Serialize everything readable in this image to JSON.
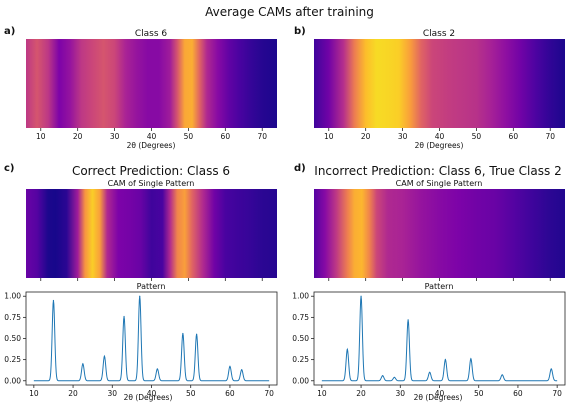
{
  "figure": {
    "title": "Average CAMs after training"
  },
  "chart_data": [
    {
      "type": "heatmap",
      "panel_label": "a)",
      "title": "Class 6",
      "xlabel": "2θ (Degrees)",
      "xlim": [
        6,
        74
      ],
      "xticks": [
        10,
        20,
        30,
        40,
        50,
        60,
        70
      ],
      "colormap": "plasma",
      "x": [
        6,
        9,
        12,
        15,
        18,
        21,
        24,
        27,
        30,
        33,
        36,
        39,
        42,
        45,
        47,
        49,
        51,
        53,
        55,
        58,
        61,
        64,
        67,
        70,
        74
      ],
      "values": [
        0.45,
        0.55,
        0.45,
        0.25,
        0.32,
        0.45,
        0.5,
        0.55,
        0.5,
        0.38,
        0.32,
        0.28,
        0.28,
        0.35,
        0.55,
        0.8,
        0.82,
        0.6,
        0.4,
        0.28,
        0.18,
        0.12,
        0.08,
        0.05,
        0.03
      ]
    },
    {
      "type": "heatmap",
      "panel_label": "b)",
      "title": "Class 2",
      "xlabel": "2θ (Degrees)",
      "xlim": [
        6,
        74
      ],
      "xticks": [
        10,
        20,
        30,
        40,
        50,
        60,
        70
      ],
      "colormap": "plasma",
      "x": [
        6,
        10,
        14,
        17,
        20,
        23,
        26,
        29,
        32,
        35,
        38,
        42,
        46,
        50,
        54,
        58,
        62,
        66,
        70,
        74
      ],
      "values": [
        0.1,
        0.22,
        0.42,
        0.68,
        0.86,
        0.93,
        0.92,
        0.9,
        0.78,
        0.6,
        0.5,
        0.47,
        0.45,
        0.43,
        0.37,
        0.3,
        0.22,
        0.13,
        0.07,
        0.03
      ]
    },
    {
      "type": "heatmap",
      "panel_label": "c)",
      "suptitle": "Correct Prediction: Class 6",
      "title": "CAM of Single Pattern",
      "colormap": "plasma",
      "xlim": [
        6,
        74
      ],
      "xticks": [
        10,
        20,
        30,
        40,
        50,
        60,
        70
      ],
      "x": [
        6,
        9,
        12,
        14,
        17,
        20,
        22,
        24,
        26,
        28,
        31,
        34,
        37,
        40,
        43,
        45,
        47,
        49,
        51,
        54,
        57,
        60,
        63,
        67,
        70,
        74
      ],
      "values": [
        0.2,
        0.15,
        0.03,
        0.02,
        0.06,
        0.35,
        0.75,
        0.9,
        0.78,
        0.4,
        0.25,
        0.23,
        0.2,
        0.1,
        0.12,
        0.4,
        0.7,
        0.78,
        0.6,
        0.4,
        0.22,
        0.12,
        0.1,
        0.08,
        0.06,
        0.05
      ]
    },
    {
      "type": "line",
      "title": "Pattern",
      "xlabel": "2θ (Degrees)",
      "xlim": [
        8,
        72
      ],
      "ylim": [
        -0.05,
        1.05
      ],
      "xticks": [
        10,
        20,
        30,
        40,
        50,
        60,
        70
      ],
      "yticks": [
        "0.00",
        "0.25",
        "0.50",
        "0.75",
        "1.00"
      ],
      "peaks": [
        {
          "x": 15,
          "y": 0.95
        },
        {
          "x": 22.5,
          "y": 0.2
        },
        {
          "x": 28,
          "y": 0.29
        },
        {
          "x": 33,
          "y": 0.76
        },
        {
          "x": 37,
          "y": 1.0
        },
        {
          "x": 41.5,
          "y": 0.14
        },
        {
          "x": 48,
          "y": 0.56
        },
        {
          "x": 51.5,
          "y": 0.55
        },
        {
          "x": 60,
          "y": 0.17
        },
        {
          "x": 63,
          "y": 0.13
        }
      ]
    },
    {
      "type": "heatmap",
      "panel_label": "d)",
      "suptitle": "Incorrect Prediction: Class 6, True Class 2",
      "title": "CAM of Single Pattern",
      "colormap": "plasma",
      "xlim": [
        6,
        74
      ],
      "xticks": [
        10,
        20,
        30,
        40,
        50,
        60,
        70
      ],
      "x": [
        6,
        9,
        12,
        15,
        17,
        19,
        21,
        23,
        26,
        30,
        35,
        40,
        45,
        50,
        55,
        60,
        65,
        70,
        74
      ],
      "values": [
        0.15,
        0.28,
        0.45,
        0.68,
        0.82,
        0.84,
        0.7,
        0.5,
        0.4,
        0.38,
        0.32,
        0.28,
        0.25,
        0.22,
        0.2,
        0.15,
        0.1,
        0.06,
        0.04
      ]
    },
    {
      "type": "line",
      "title": "Pattern",
      "xlabel": "2θ (Degrees)",
      "xlim": [
        8,
        72
      ],
      "ylim": [
        -0.05,
        1.05
      ],
      "xticks": [
        10,
        20,
        30,
        40,
        50,
        60,
        70
      ],
      "yticks": [
        "0.00",
        "0.25",
        "0.50",
        "0.75",
        "1.00"
      ],
      "peaks": [
        {
          "x": 16.5,
          "y": 0.37
        },
        {
          "x": 20,
          "y": 1.0
        },
        {
          "x": 25.5,
          "y": 0.06
        },
        {
          "x": 28.5,
          "y": 0.04
        },
        {
          "x": 32,
          "y": 0.72
        },
        {
          "x": 37.5,
          "y": 0.1
        },
        {
          "x": 41.5,
          "y": 0.25
        },
        {
          "x": 48,
          "y": 0.26
        },
        {
          "x": 56,
          "y": 0.07
        },
        {
          "x": 68.5,
          "y": 0.14
        }
      ]
    }
  ]
}
